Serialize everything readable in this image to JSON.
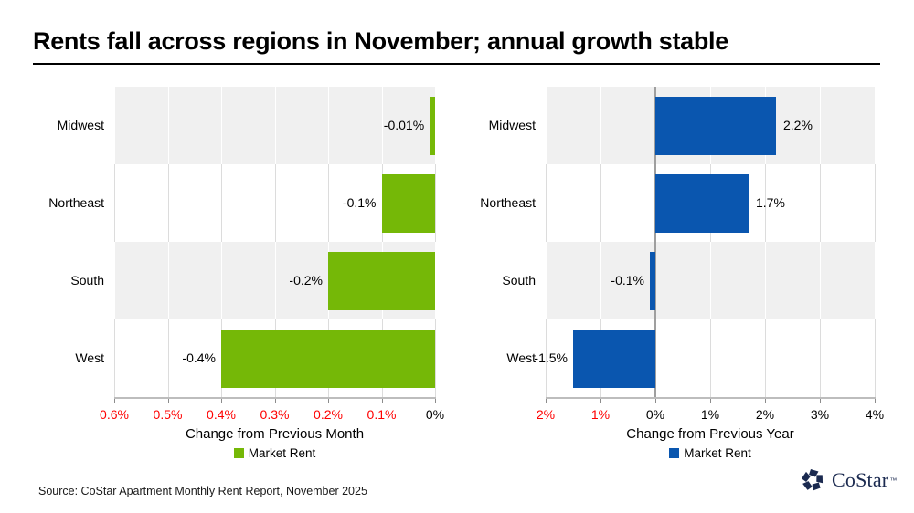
{
  "page": {
    "title": "Rents fall across regions in November; annual growth stable",
    "source_note": "Source: CoStar Apartment Monthly Rent Report, November 2025"
  },
  "logo": {
    "text": "CoStar",
    "tm": "™",
    "color": "#1b2a50"
  },
  "colors": {
    "green_bar": "#75b807",
    "blue_bar": "#0a56af",
    "red_tick": "#ff0000",
    "black_tick": "#000000",
    "band_gray": "#f0f0f0",
    "band_white": "#ffffff"
  },
  "chart_data": [
    {
      "type": "bar",
      "orientation": "horizontal",
      "title": "",
      "categories": [
        "Midwest",
        "Northeast",
        "South",
        "West"
      ],
      "values": [
        -0.01,
        -0.1,
        -0.2,
        -0.4
      ],
      "value_labels": [
        "-0.01%",
        "-0.1%",
        "-0.2%",
        "-0.4%"
      ],
      "xlabel": "Change from Previous Month",
      "legend": "Market Rent",
      "legend_position": "bottom",
      "bar_color": "#75b807",
      "xlim": [
        -0.6,
        0
      ],
      "grid": true,
      "zero_emphasis": false,
      "row_bands": [
        "#f0f0f0",
        "#ffffff",
        "#f0f0f0",
        "#ffffff"
      ],
      "ticks": [
        {
          "label": "0.6%",
          "value": -0.6,
          "color": "#ff0000"
        },
        {
          "label": "0.5%",
          "value": -0.5,
          "color": "#ff0000"
        },
        {
          "label": "0.4%",
          "value": -0.4,
          "color": "#ff0000"
        },
        {
          "label": "0.3%",
          "value": -0.3,
          "color": "#ff0000"
        },
        {
          "label": "0.2%",
          "value": -0.2,
          "color": "#ff0000"
        },
        {
          "label": "0.1%",
          "value": -0.1,
          "color": "#ff0000"
        },
        {
          "label": "0%",
          "value": 0,
          "color": "#000000"
        }
      ]
    },
    {
      "type": "bar",
      "orientation": "horizontal",
      "title": "",
      "categories": [
        "Midwest",
        "Northeast",
        "South",
        "West"
      ],
      "values": [
        2.2,
        1.7,
        -0.1,
        -1.5
      ],
      "value_labels": [
        "2.2%",
        "1.7%",
        "-0.1%",
        "-1.5%"
      ],
      "xlabel": "Change from Previous Year",
      "legend": "Market Rent",
      "legend_position": "bottom",
      "bar_color": "#0a56af",
      "xlim": [
        -2,
        4
      ],
      "grid": true,
      "zero_emphasis": true,
      "row_bands": [
        "#f0f0f0",
        "#ffffff",
        "#f0f0f0",
        "#ffffff"
      ],
      "ticks": [
        {
          "label": "2%",
          "value": -2,
          "color": "#ff0000"
        },
        {
          "label": "1%",
          "value": -1,
          "color": "#ff0000"
        },
        {
          "label": "0%",
          "value": 0,
          "color": "#000000"
        },
        {
          "label": "1%",
          "value": 1,
          "color": "#000000"
        },
        {
          "label": "2%",
          "value": 2,
          "color": "#000000"
        },
        {
          "label": "3%",
          "value": 3,
          "color": "#000000"
        },
        {
          "label": "4%",
          "value": 4,
          "color": "#000000"
        }
      ]
    }
  ]
}
